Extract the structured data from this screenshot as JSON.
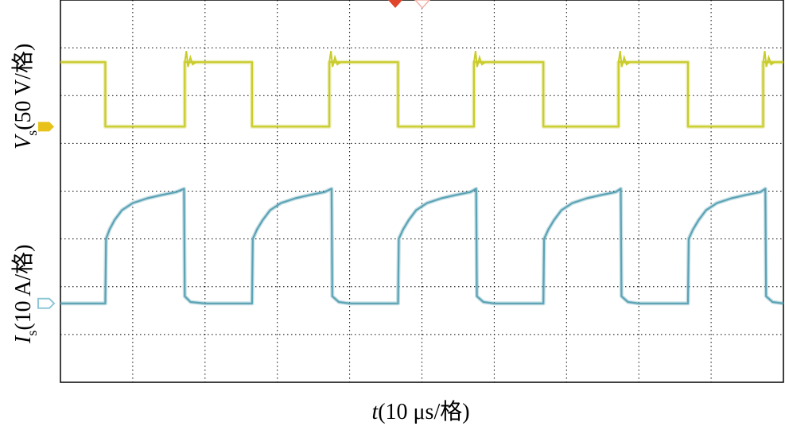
{
  "chart_data": {
    "type": "line",
    "title": "",
    "xlabel": {
      "sym": "t",
      "unit": "(10 μs/格)"
    },
    "grid": true,
    "grid_divisions": {
      "x": 10,
      "y": 8
    },
    "x_range_div": [
      0,
      10
    ],
    "series": [
      {
        "name": "Vs",
        "label": {
          "sym": "V",
          "sub": "s",
          "unit": "(50 V/格)"
        },
        "color": "#c9cc2a",
        "scale_per_div": 50,
        "ground_div": 5.35,
        "marker": "1",
        "x_div": [
          0,
          0.62,
          0.62,
          1.72,
          1.72,
          2.65,
          2.65,
          3.72,
          3.72,
          4.67,
          4.67,
          5.72,
          5.72,
          6.68,
          6.68,
          7.72,
          7.72,
          8.68,
          8.68,
          9.72,
          9.72,
          10
        ],
        "y_div": [
          6.7,
          6.7,
          5.35,
          5.35,
          6.7,
          6.7,
          5.35,
          5.35,
          6.7,
          6.7,
          5.35,
          5.35,
          6.7,
          6.7,
          5.35,
          5.35,
          6.7,
          6.7,
          5.35,
          5.35,
          6.7,
          6.7
        ]
      },
      {
        "name": "Is",
        "label": {
          "sym": "I",
          "sub": "s",
          "unit": "(10 A/格)"
        },
        "color": "#5ba3b5",
        "scale_per_div": 10,
        "ground_div": 1.65,
        "marker": "2",
        "x_div": [
          0,
          0.62,
          0.63,
          0.68,
          0.75,
          0.85,
          1.0,
          1.2,
          1.4,
          1.6,
          1.71,
          1.72,
          1.8,
          2.0,
          2.65,
          2.66,
          2.72,
          2.8,
          2.9,
          3.05,
          3.25,
          3.45,
          3.65,
          3.75,
          3.76,
          3.85,
          4.0,
          4.67,
          4.68,
          4.74,
          4.82,
          4.92,
          5.07,
          5.27,
          5.47,
          5.67,
          5.75,
          5.76,
          5.85,
          6.0,
          6.68,
          6.69,
          6.75,
          6.83,
          6.93,
          7.08,
          7.28,
          7.48,
          7.68,
          7.75,
          7.76,
          7.85,
          8.0,
          8.68,
          8.69,
          8.75,
          8.83,
          8.93,
          9.08,
          9.28,
          9.48,
          9.68,
          9.75,
          9.76,
          9.85,
          10.0
        ],
        "y_div": [
          1.65,
          1.65,
          3.0,
          3.2,
          3.4,
          3.6,
          3.75,
          3.85,
          3.92,
          3.98,
          4.05,
          1.8,
          1.68,
          1.65,
          1.65,
          3.0,
          3.2,
          3.4,
          3.6,
          3.75,
          3.85,
          3.92,
          3.98,
          4.05,
          1.8,
          1.68,
          1.65,
          1.65,
          3.0,
          3.2,
          3.4,
          3.6,
          3.75,
          3.85,
          3.92,
          3.98,
          4.05,
          1.8,
          1.68,
          1.65,
          1.65,
          3.0,
          3.2,
          3.4,
          3.6,
          3.75,
          3.85,
          3.92,
          3.98,
          4.05,
          1.8,
          1.68,
          1.65,
          1.65,
          3.0,
          3.2,
          3.4,
          3.6,
          3.75,
          3.85,
          3.92,
          3.98,
          4.05,
          1.8,
          1.68,
          1.65
        ]
      }
    ],
    "trigger_markers": [
      {
        "name": "trigger-marker",
        "color": "#e0442a"
      },
      {
        "name": "trigger-marker-outline",
        "color": "#f2b0a6"
      }
    ]
  }
}
